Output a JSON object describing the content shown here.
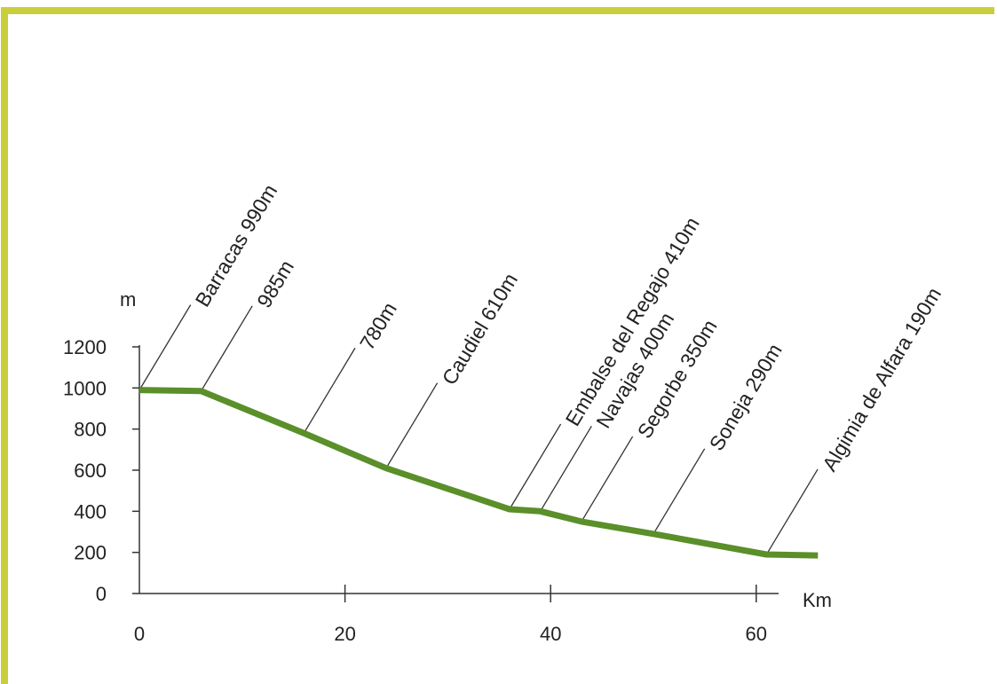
{
  "colors": {
    "frame": "#c8cf3a",
    "profile_line": "#5a8f2a",
    "axis": "#333333",
    "leader": "#333333"
  },
  "chart_data": {
    "type": "line",
    "xlabel": "Km",
    "ylabel": "m",
    "xlim": [
      0,
      66
    ],
    "ylim": [
      0,
      1200
    ],
    "x_ticks": [
      0,
      20,
      40,
      60
    ],
    "x_tick_labels": [
      "0",
      "20",
      "40",
      "60"
    ],
    "y_ticks": [
      0,
      200,
      400,
      600,
      800,
      1000,
      1200
    ],
    "y_tick_labels": [
      "0",
      "200",
      "400",
      "600",
      "800",
      "1000",
      "1200"
    ],
    "grid": false,
    "legend": "none",
    "series": [
      {
        "x": [
          0,
          6,
          16,
          24,
          36,
          39,
          43,
          50,
          61,
          66
        ],
        "y": [
          990,
          985,
          780,
          610,
          410,
          400,
          350,
          290,
          190,
          185
        ]
      }
    ],
    "annotations": [
      {
        "label": "Barracas 990m",
        "x": 0,
        "y": 990
      },
      {
        "label": "985m",
        "x": 6,
        "y": 985
      },
      {
        "label": "780m",
        "x": 16,
        "y": 780
      },
      {
        "label": "Caudiel 610m",
        "x": 24,
        "y": 610
      },
      {
        "label": "Embalse del Regajo 410m",
        "x": 36,
        "y": 410
      },
      {
        "label": "Navajas 400m",
        "x": 39,
        "y": 400
      },
      {
        "label": "Segorbe 350m",
        "x": 43,
        "y": 350
      },
      {
        "label": "Soneja 290m",
        "x": 50,
        "y": 290
      },
      {
        "label": "Algimia de Alfara 190m",
        "x": 61,
        "y": 190
      }
    ]
  }
}
